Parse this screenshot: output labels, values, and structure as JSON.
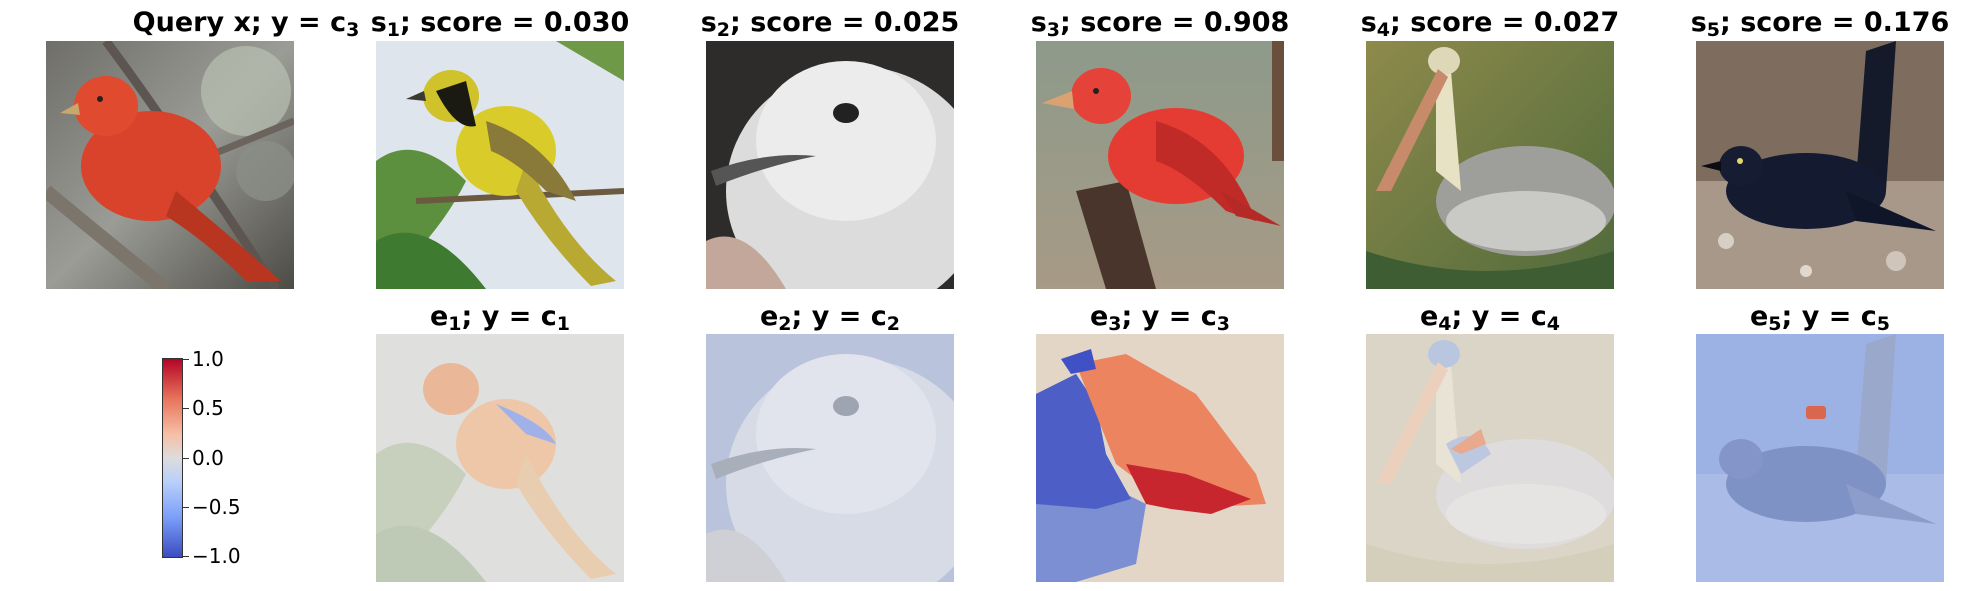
{
  "top_row": [
    {
      "label": "Query x; y",
      "eq": " = ",
      "class_letter": "c",
      "class_sub": "3",
      "image": "query bird"
    },
    {
      "label": "s",
      "label_sub": "1",
      "score_text": "; score = 0.030",
      "image": "support bird"
    },
    {
      "label": "s",
      "label_sub": "2",
      "score_text": "; score = 0.025",
      "image": "support bird"
    },
    {
      "label": "s",
      "label_sub": "3",
      "score_text": "; score = 0.908",
      "image": "support bird"
    },
    {
      "label": "s",
      "label_sub": "4",
      "score_text": "; score = 0.027",
      "image": "support bird"
    },
    {
      "label": "s",
      "label_sub": "5",
      "score_text": "; score = 0.176",
      "image": "support bird"
    }
  ],
  "bottom_row": [
    {
      "label": "e",
      "label_sub": "1",
      "mid": "; y = ",
      "cls": "c",
      "cls_sub": "1"
    },
    {
      "label": "e",
      "label_sub": "2",
      "mid": "; y = ",
      "cls": "c",
      "cls_sub": "2"
    },
    {
      "label": "e",
      "label_sub": "3",
      "mid": "; y = ",
      "cls": "c",
      "cls_sub": "3"
    },
    {
      "label": "e",
      "label_sub": "4",
      "mid": "; y = ",
      "cls": "c",
      "cls_sub": "4"
    },
    {
      "label": "e",
      "label_sub": "5",
      "mid": "; y = ",
      "cls": "c",
      "cls_sub": "5"
    }
  ],
  "colorbar": {
    "ticks": [
      "1.0",
      "0.5",
      "0.0",
      "−0.5",
      "−1.0"
    ],
    "colormap": [
      "#3b4cc0",
      "#dddcdc",
      "#b40426"
    ]
  },
  "scores": [
    0.03,
    0.025,
    0.908,
    0.027,
    0.176
  ]
}
